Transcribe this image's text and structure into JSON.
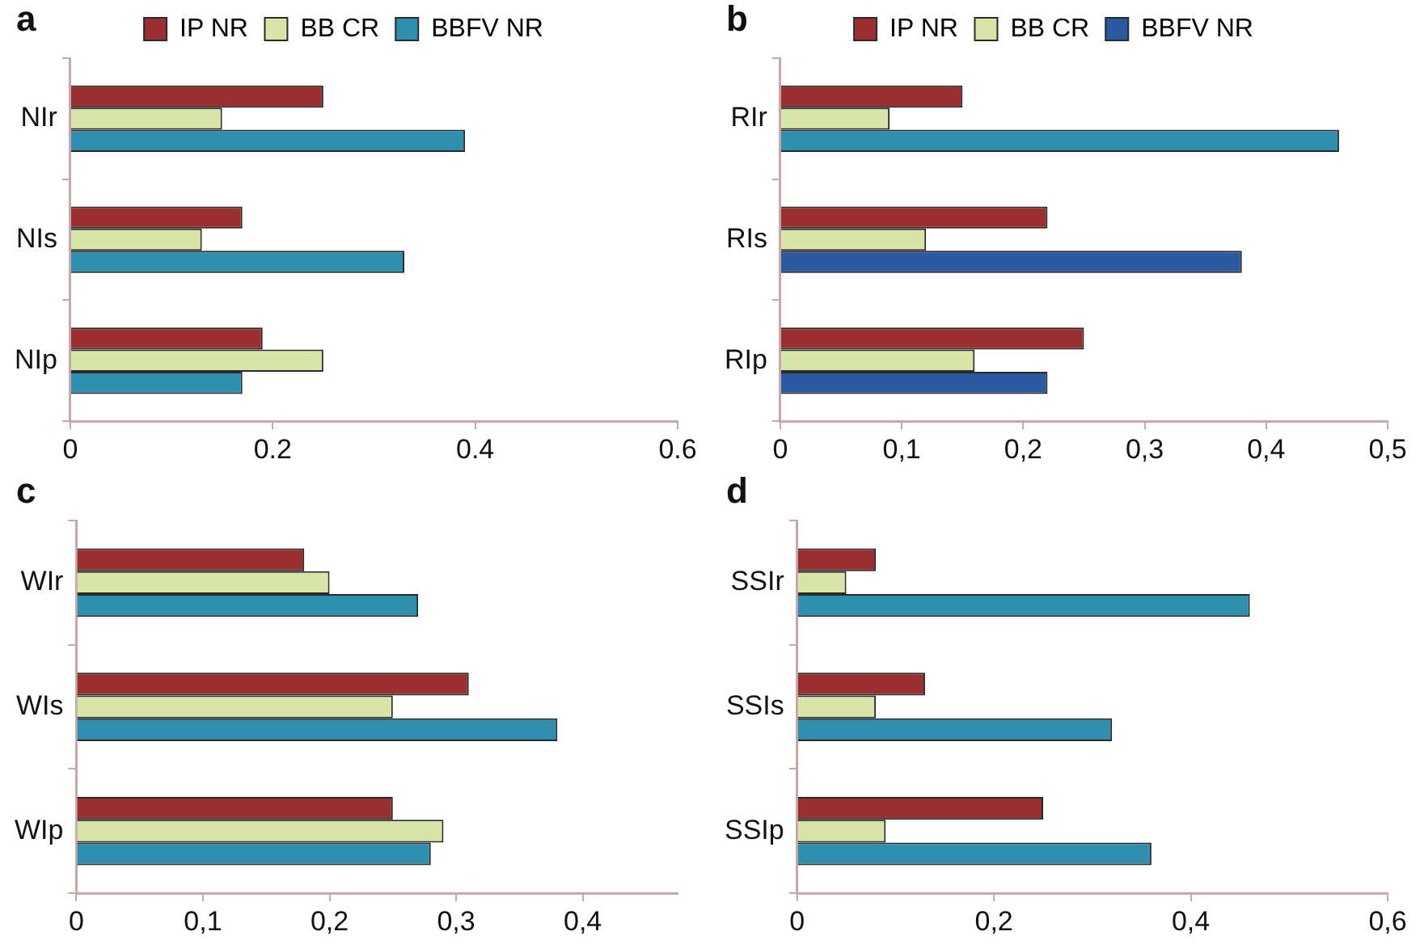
{
  "chart_data": [
    {
      "type": "bar",
      "title": "a",
      "orientation": "horizontal",
      "legend": "top",
      "categories": [
        "NIr",
        "NIs",
        "NIp"
      ],
      "xlim": [
        0,
        0.6
      ],
      "xticks": [
        0,
        0.2,
        0.4,
        0.6
      ],
      "series": [
        {
          "name": "IP NR",
          "color": "#9b2f2f",
          "values": [
            0.25,
            0.17,
            0.19
          ]
        },
        {
          "name": "BB CR",
          "color": "#d9e4a8",
          "values": [
            0.15,
            0.13,
            0.25
          ]
        },
        {
          "name": "BBFV NR",
          "color": "#2e8fae",
          "values": [
            0.39,
            0.33,
            0.17
          ]
        }
      ]
    },
    {
      "type": "bar",
      "title": "b",
      "orientation": "horizontal",
      "legend": "top",
      "categories": [
        "RIr",
        "RIs",
        "RIp"
      ],
      "xlim": [
        0,
        0.5
      ],
      "xticks": [
        0,
        {
          "value": 0.1,
          "label": "0,1"
        },
        {
          "value": 0.2,
          "label": "0,2"
        },
        {
          "value": 0.3,
          "label": "0,3"
        },
        {
          "value": 0.4,
          "label": "0,4"
        },
        {
          "value": 0.5,
          "label": "0,5"
        }
      ],
      "series": [
        {
          "name": "IP NR",
          "color": "#9b2f2f",
          "values": [
            0.15,
            0.22,
            0.25
          ]
        },
        {
          "name": "BB CR",
          "color": "#d9e4a8",
          "values": [
            0.09,
            0.12,
            0.16
          ]
        },
        {
          "name": "BBFV NR",
          "color": "#2b59a0",
          "colors": [
            "#2e8fae",
            "#2b59a0",
            "#2b59a0"
          ],
          "values": [
            0.46,
            0.38,
            0.22
          ]
        }
      ]
    },
    {
      "type": "bar",
      "title": "c",
      "orientation": "horizontal",
      "categories": [
        "WIr",
        "WIs",
        "WIp"
      ],
      "xlim": [
        0,
        0.475
      ],
      "xticks": [
        0,
        {
          "value": 0.1,
          "label": "0,1"
        },
        {
          "value": 0.2,
          "label": "0,2"
        },
        {
          "value": 0.3,
          "label": "0,3"
        },
        {
          "value": 0.4,
          "label": "0,4"
        }
      ],
      "series": [
        {
          "color": "#9b2f2f",
          "values": [
            0.18,
            0.31,
            0.25
          ]
        },
        {
          "color": "#d9e4a8",
          "values": [
            0.2,
            0.25,
            0.29
          ]
        },
        {
          "color": "#2e8fae",
          "values": [
            0.27,
            0.38,
            0.28
          ]
        }
      ]
    },
    {
      "type": "bar",
      "title": "d",
      "orientation": "horizontal",
      "categories": [
        "SSIr",
        "SSIs",
        "SSIp"
      ],
      "xlim": [
        0,
        0.6
      ],
      "xticks": [
        0,
        {
          "value": 0.2,
          "label": "0,2"
        },
        {
          "value": 0.4,
          "label": "0,4"
        },
        {
          "value": 0.6,
          "label": "0,6"
        }
      ],
      "series": [
        {
          "color": "#9b2f2f",
          "values": [
            0.08,
            0.13,
            0.25
          ]
        },
        {
          "color": "#d9e4a8",
          "values": [
            0.05,
            0.08,
            0.09
          ]
        },
        {
          "color": "#2e8fae",
          "values": [
            0.46,
            0.32,
            0.36
          ]
        }
      ]
    }
  ]
}
